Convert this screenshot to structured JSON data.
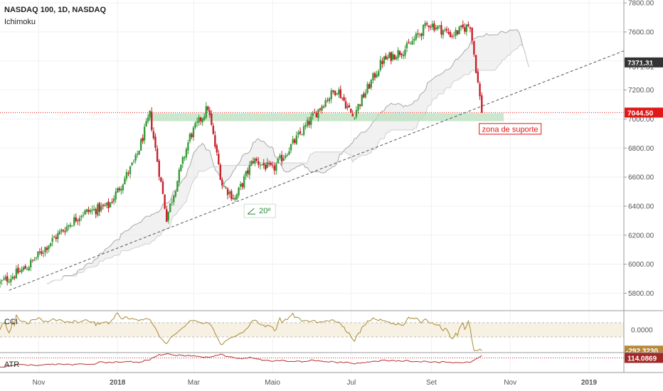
{
  "header": {
    "symbol_line": "NASDAQ 100, 1D, NASDAQ",
    "indicator": "Ichimoku"
  },
  "colors": {
    "up": "#3a9a3a",
    "down": "#c8202a",
    "cloud": "#d8d8d8",
    "support_zone": "#b9e0bd",
    "cci_line": "#a88a35",
    "atr_line": "#b83232",
    "price_line": "#e01818"
  },
  "chart_data": {
    "type": "candlestick",
    "panels": [
      {
        "name": "price",
        "y_ticks": [
          "7800.00",
          "7600.00",
          "7400.00",
          "7200.00",
          "7000.00",
          "6800.00",
          "6600.00",
          "6400.00",
          "6200.00",
          "6000.00",
          "5800.00"
        ],
        "ylim": [
          5680,
          7820
        ],
        "price_labels": [
          "7371.31",
          "7371.31",
          "7044.50"
        ],
        "support_zone": [
          6985,
          7040
        ],
        "annotations": {
          "support": "zona de suporte",
          "angle": "20º"
        }
      },
      {
        "name": "CCI",
        "label": "CCI",
        "axis_labels": [
          "0.0000",
          "-292.3230"
        ],
        "bands": [
          -100,
          100
        ]
      },
      {
        "name": "ATR",
        "label": "ATR",
        "axis_labels": [
          "114.0869"
        ]
      }
    ],
    "x_ticks": [
      "Nov",
      "2018",
      "Mar",
      "Maio",
      "Jul",
      "Set",
      "Nov",
      "2019"
    ],
    "xlim": [
      "2017-10-02",
      "2019-01-28"
    ],
    "series": [
      {
        "dates": [
          "2017-10-02",
          "2017-10-23",
          "2017-11-13",
          "2017-12-04",
          "2017-12-25",
          "2018-01-15",
          "2018-01-26",
          "2018-02-08",
          "2018-02-26",
          "2018-03-12",
          "2018-03-23",
          "2018-04-02",
          "2018-04-16",
          "2018-05-01",
          "2018-05-21",
          "2018-06-11",
          "2018-06-20",
          "2018-07-02",
          "2018-07-25",
          "2018-08-13",
          "2018-08-30",
          "2018-09-17",
          "2018-10-01",
          "2018-10-10"
        ],
        "close": [
          5870,
          5980,
          6180,
          6350,
          6400,
          6720,
          7030,
          6320,
          6880,
          7080,
          6550,
          6450,
          6720,
          6650,
          6880,
          7130,
          7210,
          7020,
          7400,
          7490,
          7660,
          7580,
          7650,
          7044.5
        ]
      }
    ]
  }
}
